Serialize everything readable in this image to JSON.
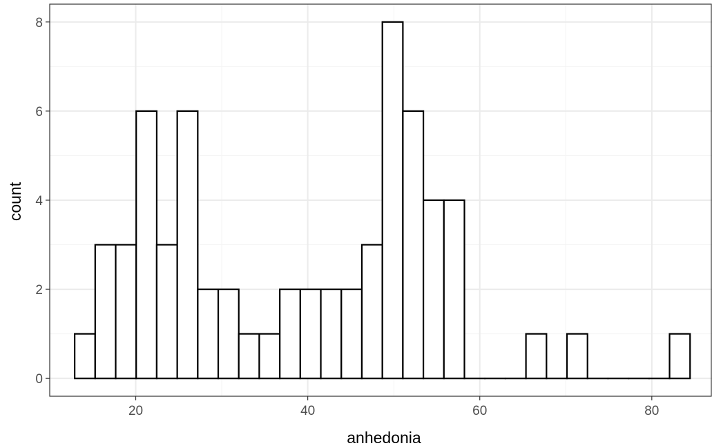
{
  "chart_data": {
    "type": "bar",
    "subtype": "histogram",
    "title": "",
    "xlabel": "anhedonia",
    "ylabel": "count",
    "xlim": [
      10,
      87
    ],
    "ylim": [
      -0.4,
      8.4
    ],
    "xticks": [
      20,
      40,
      60,
      80
    ],
    "yticks": [
      0,
      2,
      4,
      6,
      8
    ],
    "xtick_labels": [
      "20",
      "40",
      "60",
      "80"
    ],
    "ytick_labels": [
      "0",
      "2",
      "4",
      "6",
      "8"
    ],
    "bins_start": 12.9,
    "bin_width": 2.385,
    "counts": [
      1,
      3,
      3,
      6,
      3,
      6,
      2,
      2,
      1,
      1,
      2,
      2,
      2,
      2,
      3,
      8,
      6,
      4,
      4,
      0,
      0,
      0,
      1,
      0,
      1,
      0,
      0,
      0,
      0,
      1
    ],
    "grid": true,
    "legend": "none",
    "colors": {
      "bar_fill": "#ffffff",
      "bar_stroke": "#000000",
      "panel_border": "#333333",
      "grid_major": "#ebebeb",
      "grid_minor": "#f4f4f4"
    }
  }
}
